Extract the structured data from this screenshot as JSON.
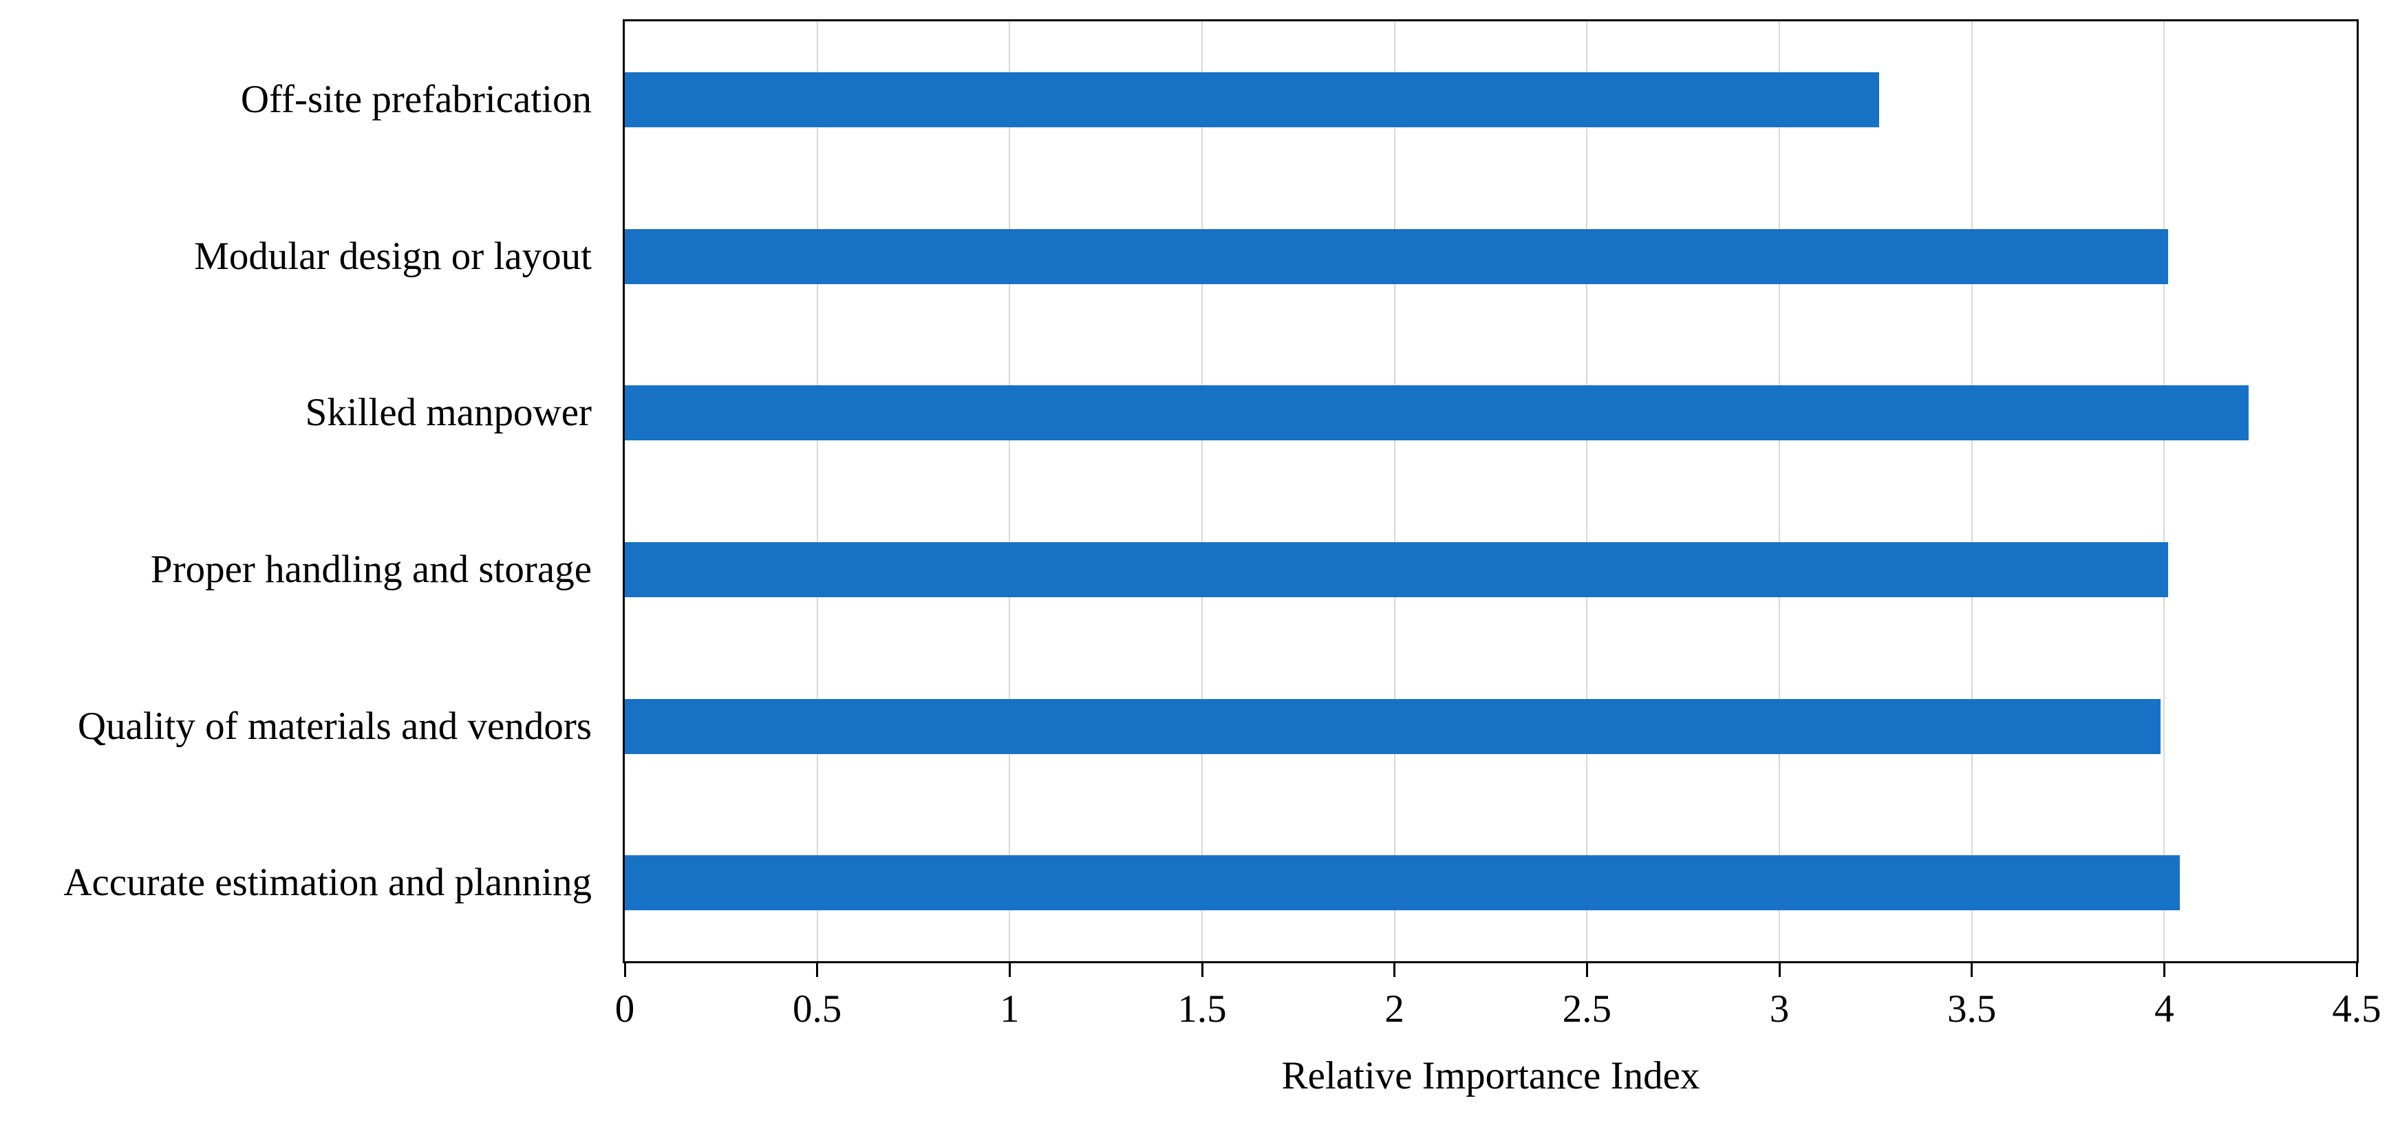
{
  "chart_data": {
    "type": "bar",
    "orientation": "horizontal",
    "title": "",
    "xlabel": "Relative Importance Index",
    "ylabel": "",
    "xlim": [
      0,
      4.5
    ],
    "xtick_values": [
      0,
      0.5,
      1,
      1.5,
      2,
      2.5,
      3,
      3.5,
      4,
      4.5
    ],
    "xtick_labels": [
      "0",
      "0.5",
      "1",
      "1.5",
      "2",
      "2.5",
      "3",
      "3.5",
      "4",
      "4.5"
    ],
    "grid": true,
    "legend": false,
    "categories": [
      "Off-site prefabrication",
      "Modular design or layout",
      "Skilled manpower",
      "Proper handling and storage",
      "Quality of materials and vendors",
      "Accurate estimation and planning"
    ],
    "values": [
      3.26,
      4.01,
      4.22,
      4.01,
      3.99,
      4.04
    ],
    "colors": {
      "bar": "#1772C6",
      "gridline": "#D9D9D9",
      "axis": "#000000",
      "text": "#000000"
    }
  }
}
